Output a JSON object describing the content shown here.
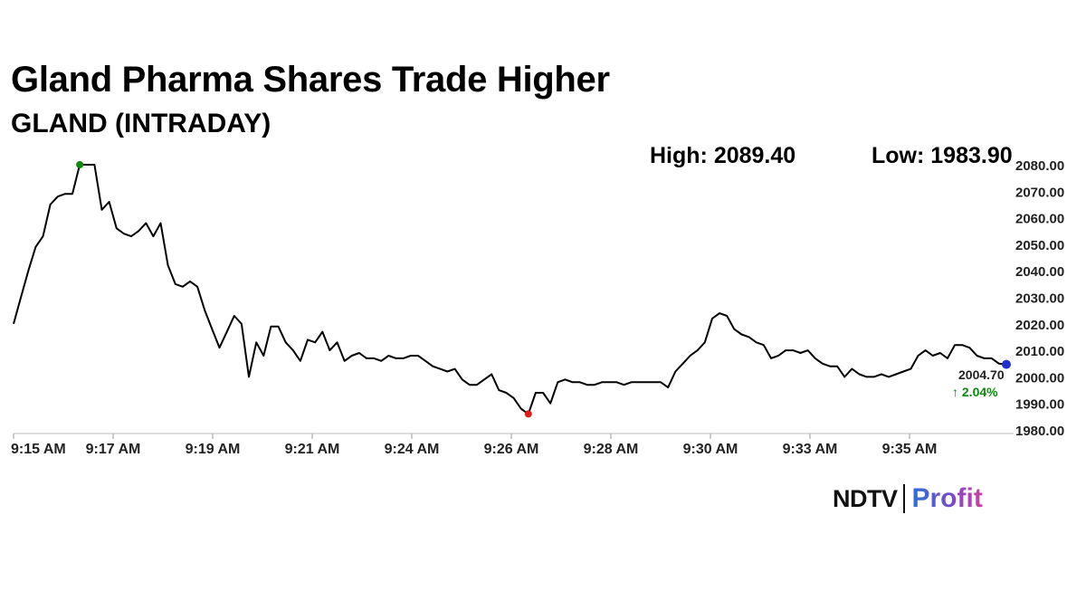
{
  "header": {
    "title": "Gland Pharma Shares Trade Higher",
    "subtitle": "GLAND (INTRADAY)"
  },
  "stats": {
    "high_label": "High: 2089.40",
    "low_label": "Low: 1983.90"
  },
  "last": {
    "price": "2004.70",
    "change": "↑ 2.04%"
  },
  "logo": {
    "brand": "NDTV",
    "product": "Profit"
  },
  "colors": {
    "line": "#000000",
    "high_marker": "#0a8a0a",
    "low_marker": "#e01a1a",
    "last_marker": "#1f2ecc",
    "change_up": "#0a8a0a"
  },
  "chart_data": {
    "type": "line",
    "title": "GLAND (INTRADAY)",
    "xlabel": "",
    "ylabel": "",
    "ylim": [
      1980,
      2080
    ],
    "y_ticks": [
      "2080.00",
      "2070.00",
      "2060.00",
      "2050.00",
      "2040.00",
      "2030.00",
      "2020.00",
      "2010.00",
      "2000.00",
      "1990.00",
      "1980.00"
    ],
    "x_ticks": [
      "9:15 AM",
      "9:17 AM",
      "9:19 AM",
      "9:21 AM",
      "9:24 AM",
      "9:26 AM",
      "9:28 AM",
      "9:30 AM",
      "9:33 AM",
      "9:35 AM"
    ],
    "grid": false,
    "series": [
      {
        "values": [
          2020,
          2030,
          2040,
          2049,
          2053,
          2065,
          2068,
          2069,
          2069,
          2080,
          2080,
          2080,
          2063,
          2066,
          2056,
          2054,
          2053,
          2055,
          2058,
          2053,
          2058,
          2042,
          2035,
          2034,
          2036,
          2034,
          2025,
          2018,
          2011,
          2017,
          2023,
          2020,
          2000,
          2013,
          2008,
          2019,
          2019,
          2013,
          2010,
          2006,
          2014,
          2013,
          2017,
          2010,
          2013,
          2006,
          2008,
          2009,
          2007,
          2007,
          2006,
          2008,
          2007,
          2007,
          2008,
          2008,
          2006,
          2004,
          2003,
          2002,
          2003,
          1999,
          1997,
          1997,
          1999,
          2001,
          1995,
          1994,
          1992,
          1988,
          1986,
          1994,
          1994,
          1990,
          1998,
          1999,
          1998,
          1998,
          1997,
          1997,
          1998,
          1998,
          1998,
          1997,
          1998,
          1998,
          1998,
          1998,
          1998,
          1996,
          2002,
          2005,
          2008,
          2010,
          2013,
          2022,
          2024,
          2023,
          2018,
          2016,
          2015,
          2013,
          2012,
          2007,
          2008,
          2010,
          2010,
          2009,
          2010,
          2007,
          2005,
          2004,
          2004,
          2000,
          2003,
          2001,
          2000,
          2000,
          2001,
          2000,
          2001,
          2002,
          2003,
          2008,
          2010,
          2008,
          2009,
          2007,
          2012,
          2012,
          2011,
          2008,
          2007,
          2007,
          2005,
          2004.7
        ],
        "high": 2089.4,
        "low": 1983.9,
        "last": 2004.7,
        "change_pct": 2.04
      }
    ]
  }
}
